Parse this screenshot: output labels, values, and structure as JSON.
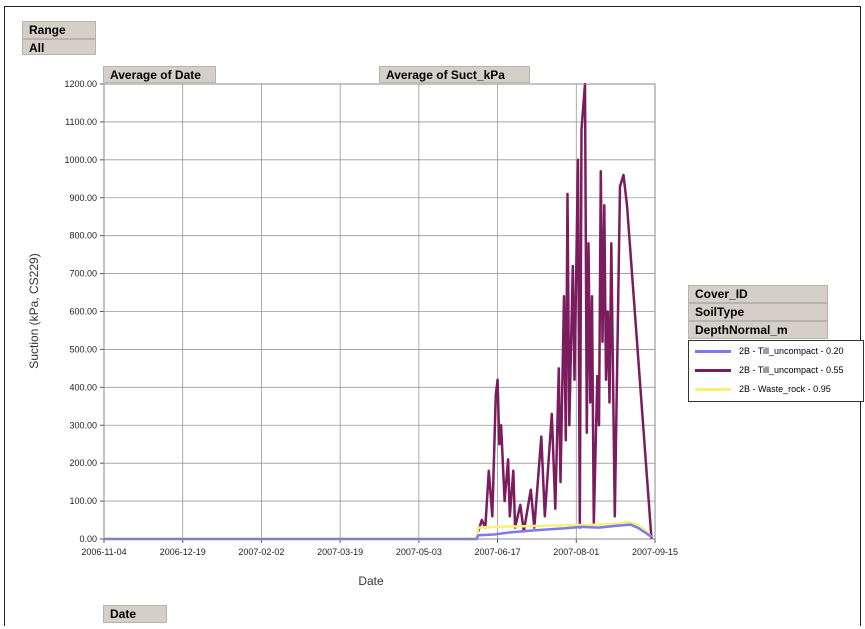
{
  "fields": {
    "range": "Range",
    "range_value": "All",
    "avg_date": "Average of Date",
    "avg_suct": "Average of Suct_kPa",
    "date": "Date",
    "cover_id": "Cover_ID",
    "soil_type": "SoilType",
    "depth": "DepthNormal_m"
  },
  "colors": {
    "series_020": "#7b7bef",
    "series_055": "#7a1c5e",
    "series_095": "#f7f07a",
    "grid": "#999999"
  },
  "chart_data": {
    "type": "line",
    "xlabel": "Date",
    "ylabel": "Suction (kPa, CS229)",
    "x_ticks": [
      "2006-11-04",
      "2006-12-19",
      "2007-02-02",
      "2007-03-19",
      "2007-05-03",
      "2007-06-17",
      "2007-08-01",
      "2007-09-15"
    ],
    "y_ticks": [
      "0.00",
      "100.00",
      "200.00",
      "300.00",
      "400.00",
      "500.00",
      "600.00",
      "700.00",
      "800.00",
      "900.00",
      "1000.00",
      "1100.00",
      "1200.00"
    ],
    "xlim": [
      "2006-11-04",
      "2007-09-15"
    ],
    "ylim": [
      0,
      1200
    ],
    "grid": true,
    "legend_position": "right",
    "series": [
      {
        "name": "2B - Till_uncompact - 0.20",
        "color": "#7b7bef",
        "points": [
          [
            "2006-11-04",
            0
          ],
          [
            "2007-06-05",
            0
          ],
          [
            "2007-06-06",
            10
          ],
          [
            "2007-06-15",
            12
          ],
          [
            "2007-06-25",
            18
          ],
          [
            "2007-07-05",
            22
          ],
          [
            "2007-07-15",
            25
          ],
          [
            "2007-07-25",
            28
          ],
          [
            "2007-08-04",
            32
          ],
          [
            "2007-08-14",
            30
          ],
          [
            "2007-08-24",
            35
          ],
          [
            "2007-09-01",
            38
          ],
          [
            "2007-09-05",
            30
          ],
          [
            "2007-09-10",
            15
          ],
          [
            "2007-09-13",
            5
          ]
        ]
      },
      {
        "name": "2B - Till_uncompact - 0.55",
        "color": "#7a1c5e",
        "points": [
          [
            "2007-06-06",
            20
          ],
          [
            "2007-06-08",
            50
          ],
          [
            "2007-06-10",
            30
          ],
          [
            "2007-06-12",
            180
          ],
          [
            "2007-06-14",
            60
          ],
          [
            "2007-06-16",
            380
          ],
          [
            "2007-06-17",
            420
          ],
          [
            "2007-06-18",
            250
          ],
          [
            "2007-06-19",
            300
          ],
          [
            "2007-06-21",
            100
          ],
          [
            "2007-06-23",
            210
          ],
          [
            "2007-06-24",
            60
          ],
          [
            "2007-06-26",
            180
          ],
          [
            "2007-06-27",
            30
          ],
          [
            "2007-06-30",
            90
          ],
          [
            "2007-07-02",
            20
          ],
          [
            "2007-07-06",
            130
          ],
          [
            "2007-07-08",
            30
          ],
          [
            "2007-07-12",
            270
          ],
          [
            "2007-07-14",
            60
          ],
          [
            "2007-07-18",
            330
          ],
          [
            "2007-07-20",
            80
          ],
          [
            "2007-07-22",
            450
          ],
          [
            "2007-07-23",
            150
          ],
          [
            "2007-07-25",
            640
          ],
          [
            "2007-07-26",
            260
          ],
          [
            "2007-07-27",
            910
          ],
          [
            "2007-07-28",
            300
          ],
          [
            "2007-07-30",
            720
          ],
          [
            "2007-07-31",
            420
          ],
          [
            "2007-08-02",
            1000
          ],
          [
            "2007-08-03",
            30
          ],
          [
            "2007-08-04",
            1080
          ],
          [
            "2007-08-06",
            1200
          ],
          [
            "2007-08-07",
            280
          ],
          [
            "2007-08-08",
            780
          ],
          [
            "2007-08-09",
            360
          ],
          [
            "2007-08-10",
            640
          ],
          [
            "2007-08-11",
            40
          ],
          [
            "2007-08-13",
            430
          ],
          [
            "2007-08-14",
            300
          ],
          [
            "2007-08-15",
            970
          ],
          [
            "2007-08-16",
            520
          ],
          [
            "2007-08-17",
            880
          ],
          [
            "2007-08-18",
            420
          ],
          [
            "2007-08-19",
            600
          ],
          [
            "2007-08-20",
            360
          ],
          [
            "2007-08-21",
            780
          ],
          [
            "2007-08-23",
            60
          ],
          [
            "2007-08-26",
            930
          ],
          [
            "2007-08-28",
            960
          ],
          [
            "2007-08-30",
            880
          ],
          [
            "2007-09-13",
            0
          ]
        ]
      },
      {
        "name": "2B - Waste_rock - 0.95",
        "color": "#f7f07a",
        "points": [
          [
            "2006-11-04",
            0
          ],
          [
            "2007-06-05",
            0
          ],
          [
            "2007-06-06",
            30
          ],
          [
            "2007-06-15",
            32
          ],
          [
            "2007-06-25",
            33
          ],
          [
            "2007-07-05",
            34
          ],
          [
            "2007-07-15",
            35
          ],
          [
            "2007-07-25",
            36
          ],
          [
            "2007-08-04",
            37
          ],
          [
            "2007-08-14",
            38
          ],
          [
            "2007-08-24",
            40
          ],
          [
            "2007-08-30",
            45
          ],
          [
            "2007-09-05",
            38
          ],
          [
            "2007-09-10",
            20
          ],
          [
            "2007-09-13",
            5
          ]
        ]
      }
    ]
  }
}
